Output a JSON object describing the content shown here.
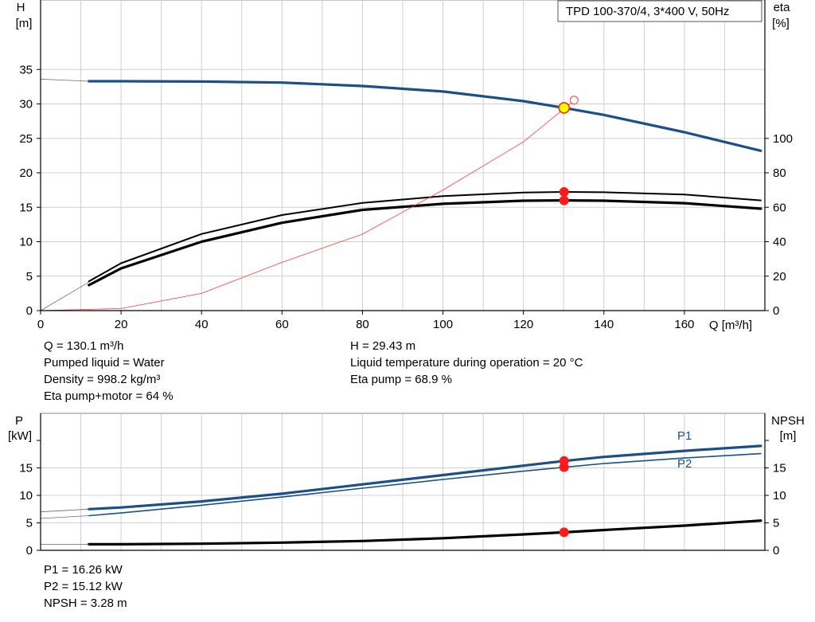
{
  "model_label": "TPD 100-370/4, 3*400 V, 50Hz",
  "colors": {
    "curve_blue": "#1b4f86",
    "curve_black": "#000000",
    "duty_point": "#ff1a1a",
    "grid": "#d0d0d0",
    "helper": "#ff3b3b",
    "marker_fill": "#ffff00"
  },
  "chart_data": [
    {
      "type": "line",
      "name": "head-efficiency",
      "x_axis": {
        "label": "Q [m³/h]",
        "range": [
          0,
          180
        ],
        "ticks": [
          0,
          20,
          40,
          60,
          80,
          100,
          120,
          140,
          160
        ]
      },
      "y_left": {
        "label_top": "H",
        "label_unit": "[m]",
        "range": [
          0,
          40
        ],
        "ticks": [
          0,
          5,
          10,
          15,
          20,
          25,
          30,
          35
        ]
      },
      "y_right": {
        "label_top": "eta",
        "label_unit": "[%]",
        "range": [
          0,
          160
        ],
        "ticks": [
          0,
          20,
          40,
          60,
          80,
          100
        ]
      },
      "grid": true,
      "series": [
        {
          "key": "H",
          "axis": "left",
          "style": "blue-thick",
          "x": [
            12,
            20,
            40,
            60,
            80,
            100,
            120,
            130.1,
            140,
            160,
            179
          ],
          "y": [
            33.3,
            33.3,
            33.25,
            33.1,
            32.6,
            31.8,
            30.4,
            29.43,
            28.4,
            25.9,
            23.2
          ]
        },
        {
          "key": "H-extrapolated",
          "axis": "left",
          "style": "thin-gray",
          "x": [
            0,
            12
          ],
          "y": [
            33.6,
            33.3
          ]
        },
        {
          "key": "Eta pump",
          "axis": "right",
          "style": "black",
          "x": [
            12,
            20,
            40,
            60,
            80,
            100,
            120,
            130.1,
            140,
            160,
            179
          ],
          "y": [
            17.0,
            27.5,
            44.5,
            55.5,
            62.5,
            66.5,
            68.6,
            68.9,
            68.7,
            67.4,
            64.0
          ]
        },
        {
          "key": "Eta pump+motor",
          "axis": "right",
          "style": "black-thick",
          "x": [
            12,
            20,
            40,
            60,
            80,
            100,
            120,
            130.1,
            140,
            160,
            179
          ],
          "y": [
            14.8,
            24.5,
            40.0,
            51.0,
            58.5,
            62.0,
            63.8,
            64.0,
            63.8,
            62.4,
            59.2
          ]
        },
        {
          "key": "Eta-extrapolated",
          "axis": "right",
          "style": "thin-gray",
          "x": [
            0,
            12
          ],
          "y": [
            0,
            16.5
          ]
        },
        {
          "key": "system-curve",
          "axis": "left",
          "style": "thin-red",
          "x": [
            0,
            20,
            40,
            60,
            80,
            100,
            120,
            132
          ],
          "y": [
            0,
            0.3,
            2.5,
            7.0,
            11.1,
            17.5,
            24.5,
            30.2
          ]
        }
      ],
      "points": [
        {
          "axis": "left",
          "x": 130.1,
          "y": 29.43,
          "style": "yellow"
        },
        {
          "axis": "left",
          "x": 132,
          "y": 30.2,
          "style": "hollow"
        },
        {
          "axis": "right",
          "x": 130.1,
          "y": 68.9,
          "style": "red"
        },
        {
          "axis": "right",
          "x": 130.1,
          "y": 64.0,
          "style": "red"
        }
      ]
    },
    {
      "type": "line",
      "name": "power-npsh",
      "x_axis": {
        "range": [
          0,
          180
        ]
      },
      "y_left": {
        "label_top": "P",
        "label_unit": "[kW]",
        "range": [
          0,
          20
        ],
        "ticks": [
          0,
          5,
          10,
          15
        ]
      },
      "y_right": {
        "label_top": "NPSH",
        "label_unit": "[m]",
        "range": [
          0,
          20
        ],
        "ticks": [
          0,
          5,
          10,
          15
        ]
      },
      "grid": true,
      "series": [
        {
          "key": "P1",
          "label": "P1",
          "axis": "left",
          "style": "blue-thick",
          "x": [
            12,
            20,
            40,
            60,
            80,
            100,
            120,
            130.1,
            140,
            160,
            179
          ],
          "y": [
            7.5,
            7.8,
            8.9,
            10.3,
            12.0,
            13.7,
            15.4,
            16.26,
            17.0,
            18.1,
            19.0
          ]
        },
        {
          "key": "P2",
          "label": "P2",
          "axis": "left",
          "style": "blue",
          "x": [
            12,
            20,
            40,
            60,
            80,
            100,
            120,
            130.1,
            140,
            160,
            179
          ],
          "y": [
            6.3,
            6.8,
            8.2,
            9.7,
            11.3,
            12.9,
            14.4,
            15.12,
            15.8,
            16.8,
            17.6
          ]
        },
        {
          "key": "P1-extrapolated",
          "axis": "left",
          "style": "thin-gray",
          "x": [
            0,
            12
          ],
          "y": [
            7.0,
            7.5
          ]
        },
        {
          "key": "P2-extrapolated",
          "axis": "left",
          "style": "thin-gray",
          "x": [
            0,
            12
          ],
          "y": [
            5.8,
            6.3
          ]
        },
        {
          "key": "NPSH",
          "axis": "right",
          "style": "black-thick",
          "x": [
            12,
            20,
            40,
            60,
            80,
            100,
            120,
            130.1,
            140,
            160,
            179
          ],
          "y": [
            1.1,
            1.1,
            1.2,
            1.4,
            1.7,
            2.2,
            2.9,
            3.28,
            3.7,
            4.5,
            5.4
          ]
        },
        {
          "key": "NPSH-extrapolated",
          "axis": "right",
          "style": "thin-gray",
          "x": [
            0,
            12
          ],
          "y": [
            1.1,
            1.1
          ]
        }
      ],
      "points": [
        {
          "axis": "left",
          "x": 130.1,
          "y": 16.26,
          "style": "red"
        },
        {
          "axis": "left",
          "x": 130.1,
          "y": 15.12,
          "style": "red"
        },
        {
          "axis": "right",
          "x": 130.1,
          "y": 3.28,
          "style": "red"
        }
      ]
    }
  ],
  "info_top": {
    "left": [
      "Q = 130.1 m³/h",
      "Pumped liquid = Water",
      "Density = 998.2 kg/m³",
      "Eta pump+motor = 64 %"
    ],
    "right": [
      "H = 29.43 m",
      "Liquid temperature during operation = 20 °C",
      "Eta pump = 68.9 %"
    ]
  },
  "info_bottom": [
    "P1 = 16.26 kW",
    "P2 = 15.12 kW",
    "NPSH = 3.28 m"
  ]
}
